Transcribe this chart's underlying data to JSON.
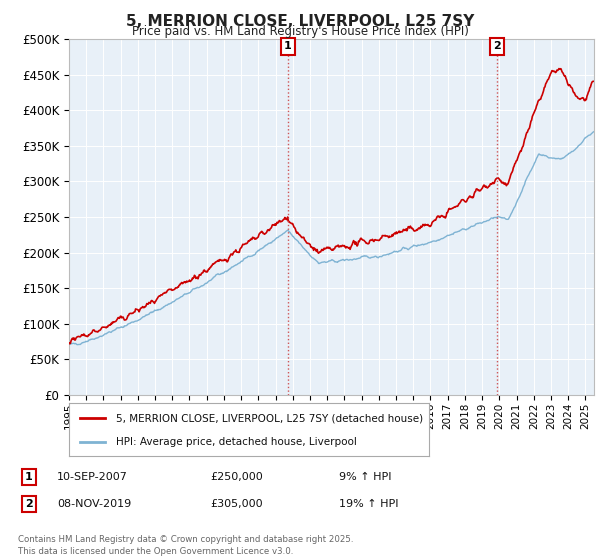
{
  "title": "5, MERRION CLOSE, LIVERPOOL, L25 7SY",
  "subtitle": "Price paid vs. HM Land Registry's House Price Index (HPI)",
  "price_color": "#cc0000",
  "hpi_color": "#7fb3d3",
  "grid_color": "#cccccc",
  "bg_color": "#ffffff",
  "plot_bg_color": "#e8f0f8",
  "annotation1": {
    "label": "1",
    "date": "10-SEP-2007",
    "price": 250000,
    "pct": "9% ↑ HPI"
  },
  "annotation2": {
    "label": "2",
    "date": "08-NOV-2019",
    "price": 305000,
    "pct": "19% ↑ HPI"
  },
  "legend1": "5, MERRION CLOSE, LIVERPOOL, L25 7SY (detached house)",
  "legend2": "HPI: Average price, detached house, Liverpool",
  "footnote": "Contains HM Land Registry data © Crown copyright and database right 2025.\nThis data is licensed under the Open Government Licence v3.0.",
  "ylim": [
    0,
    500000
  ],
  "yticks": [
    0,
    50000,
    100000,
    150000,
    200000,
    250000,
    300000,
    350000,
    400000,
    450000,
    500000
  ],
  "t1": 2007.71,
  "t2": 2019.87,
  "xstart": 1995,
  "xend": 2025.5
}
